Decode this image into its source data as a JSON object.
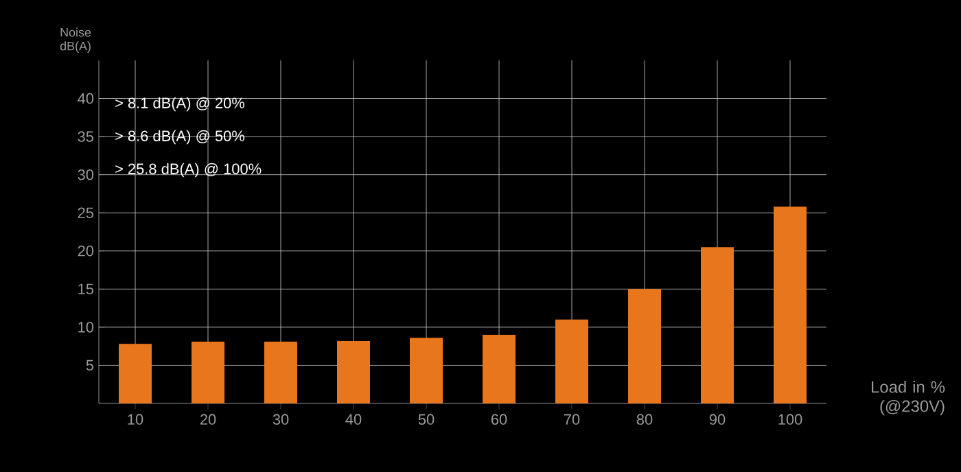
{
  "chart_data": {
    "type": "bar",
    "categories": [
      "10",
      "20",
      "30",
      "40",
      "50",
      "60",
      "70",
      "80",
      "90",
      "100"
    ],
    "values": [
      7.8,
      8.1,
      8.1,
      8.2,
      8.6,
      9.0,
      11.0,
      15.0,
      20.5,
      25.8
    ],
    "color": "#e8761c",
    "xlabel": "Load in % (@230V)",
    "ylabel": "Noise dB(A)",
    "ylim": [
      0,
      45
    ],
    "yticks": [
      5,
      10,
      15,
      20,
      25,
      30,
      35,
      40
    ],
    "grid": true,
    "annotations": [
      "> 8.1  dB(A) @ 20%",
      "> 8.6  dB(A) @ 50%",
      "> 25.8 dB(A) @ 100%"
    ]
  }
}
